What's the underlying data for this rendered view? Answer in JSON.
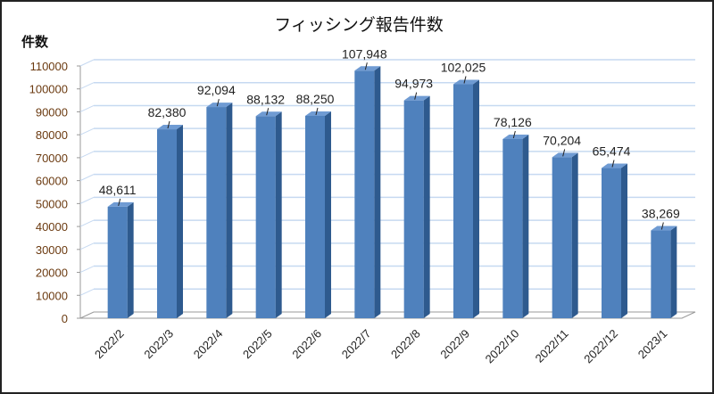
{
  "chart_data": {
    "type": "bar",
    "title": "フィッシング報告件数",
    "ylabel": "件数",
    "xlabel": "",
    "categories": [
      "2022/2",
      "2022/3",
      "2022/4",
      "2022/5",
      "2022/6",
      "2022/7",
      "2022/8",
      "2022/9",
      "2022/10",
      "2022/11",
      "2022/12",
      "2023/1"
    ],
    "values": [
      48611,
      82380,
      92094,
      88132,
      88250,
      107948,
      94973,
      102025,
      78126,
      70204,
      65474,
      38269
    ],
    "data_labels": [
      "48,611",
      "82,380",
      "92,094",
      "88,132",
      "88,250",
      "107,948",
      "94,973",
      "102,025",
      "78,126",
      "70,204",
      "65,474",
      "38,269"
    ],
    "ylim": [
      0,
      110000
    ],
    "yticks": [
      0,
      10000,
      20000,
      30000,
      40000,
      50000,
      60000,
      70000,
      80000,
      90000,
      100000,
      110000
    ],
    "grid": true,
    "legend": "none",
    "colors": {
      "bar_front": "#4f81bd",
      "bar_top": "#6f9bd3",
      "bar_side": "#2e5a8e",
      "grid": "#c6d9f1",
      "tick_label": "#6b3a10"
    }
  }
}
